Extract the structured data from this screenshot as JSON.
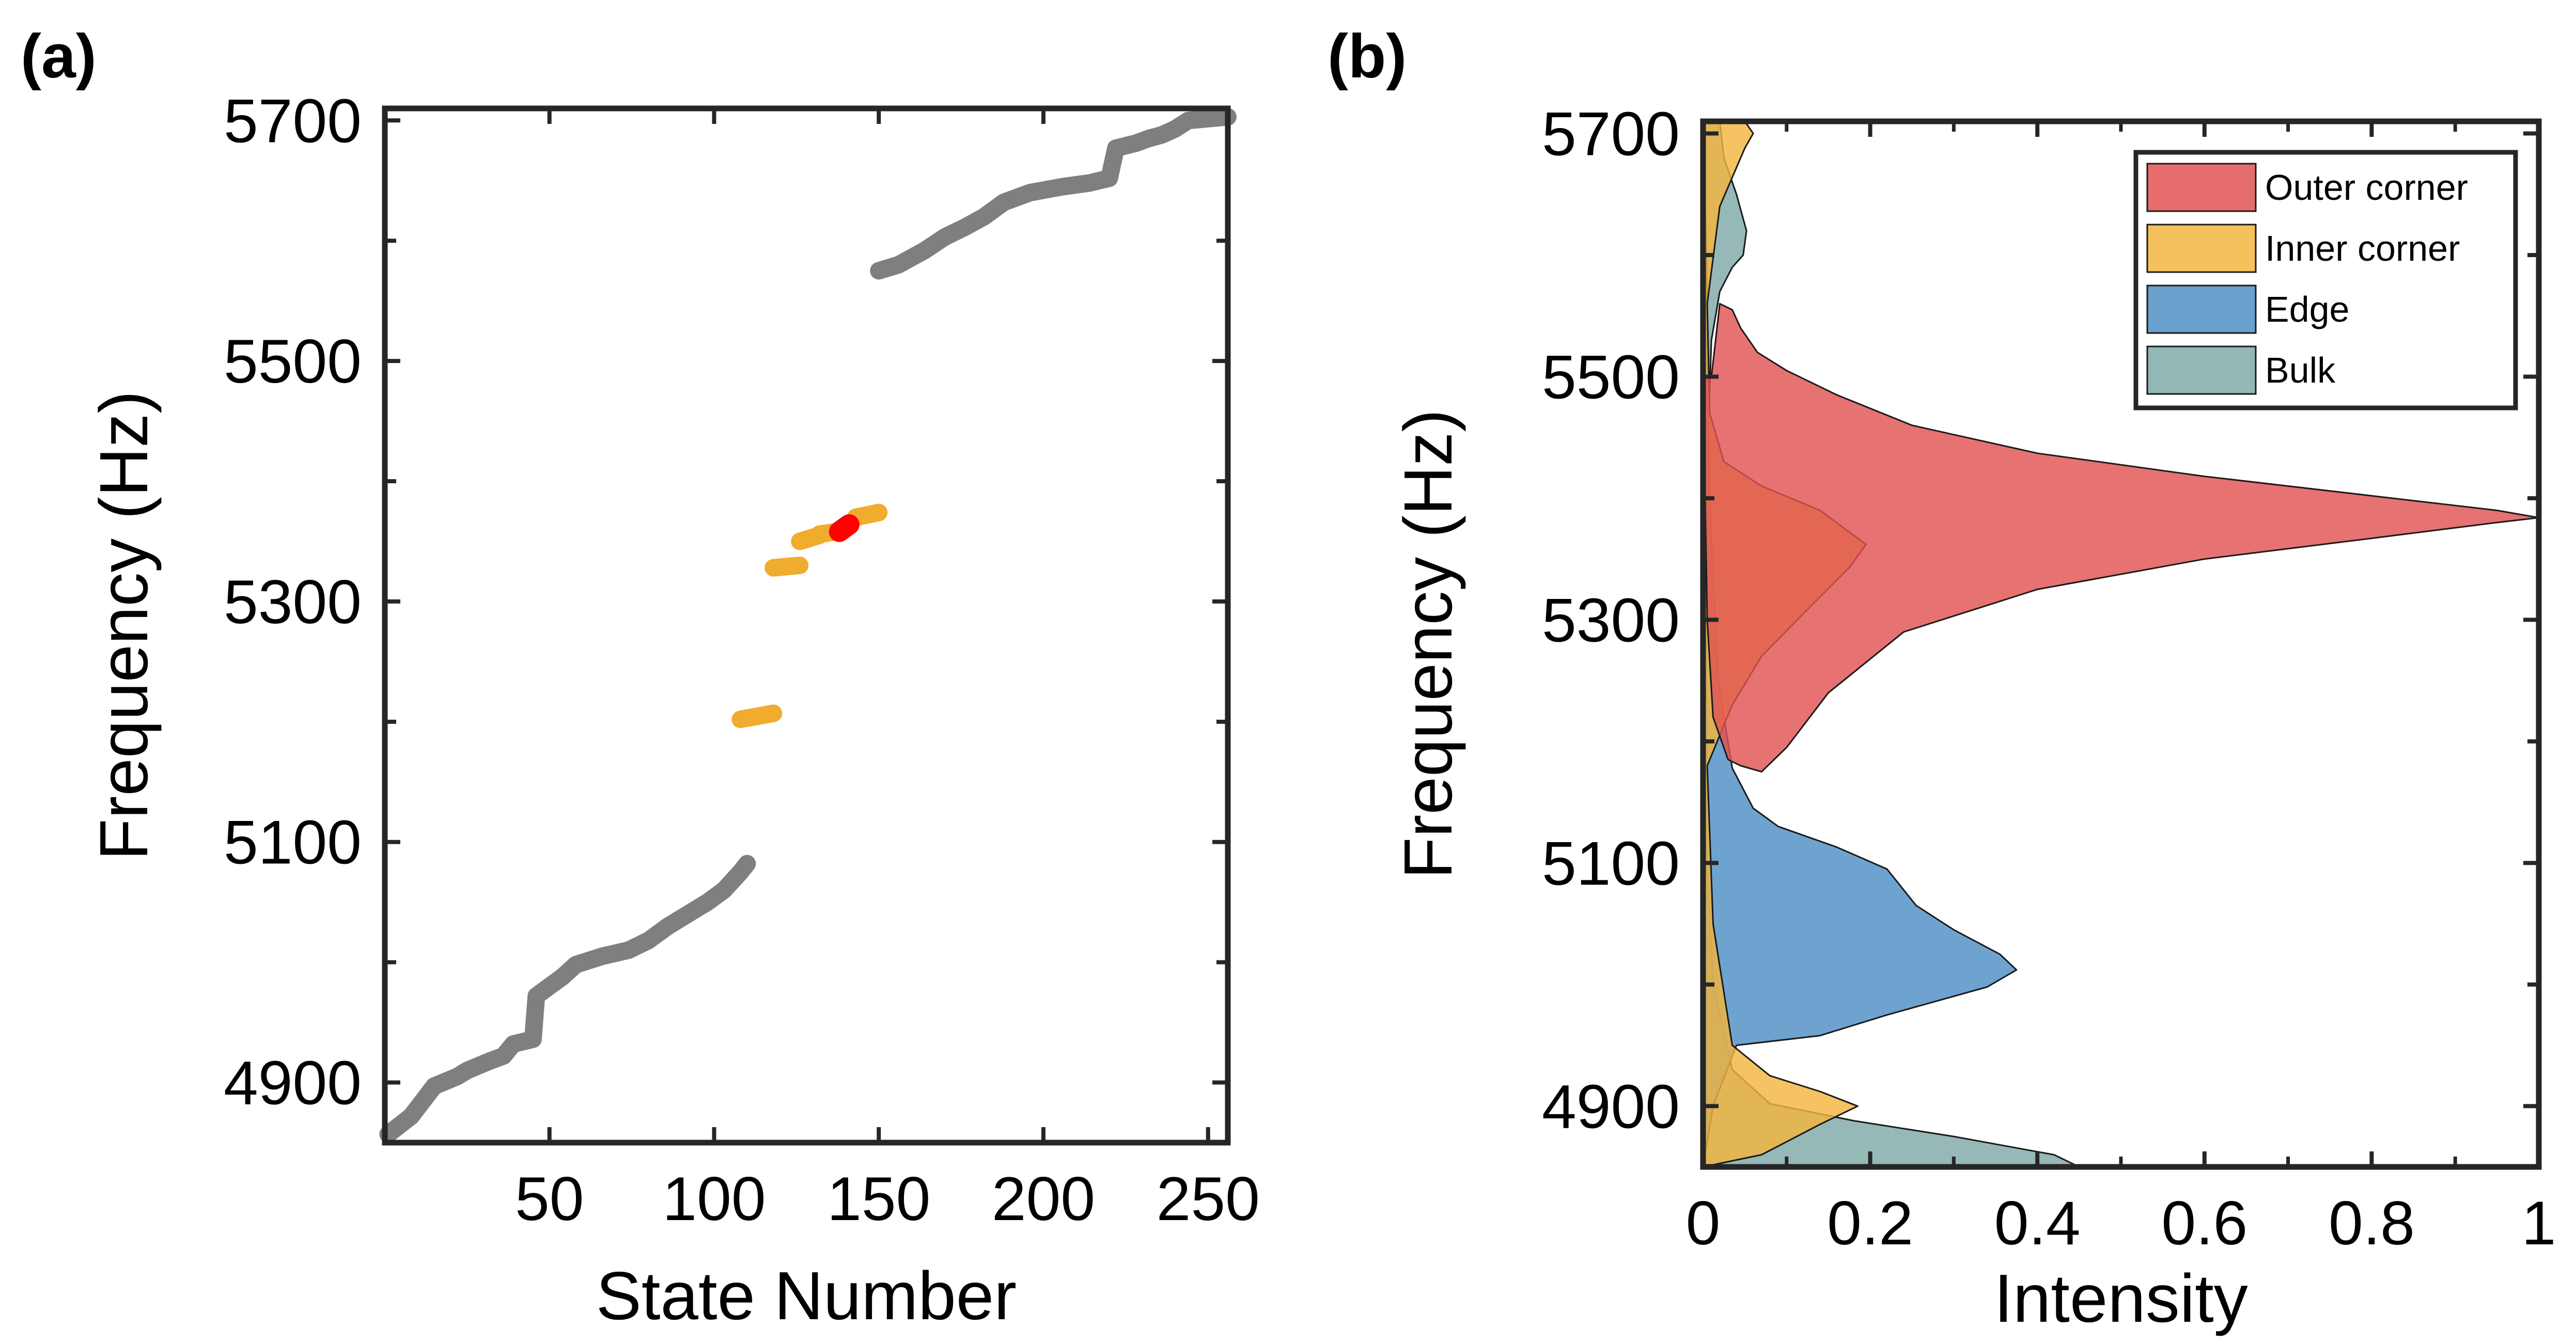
{
  "chart_data": [
    {
      "panel_label": "(a)",
      "type": "scatter",
      "xlabel": "State Number",
      "ylabel": "Frequency (Hz)",
      "xlim": [
        0,
        256
      ],
      "ylim": [
        4850,
        5710
      ],
      "xticks": [
        50,
        100,
        150,
        200,
        250
      ],
      "yticks": [
        4900,
        5100,
        5300,
        5500,
        5700
      ],
      "yminor": [
        5000,
        5200,
        5400,
        5600
      ],
      "colors": {
        "bulk": "#7f7f7f",
        "inner": "#f0ac2c",
        "outer": "#ff0000"
      },
      "gray_segments": [
        [
          1,
          4857
        ],
        [
          8,
          4872
        ],
        [
          15,
          4897
        ],
        [
          22,
          4905
        ],
        [
          25,
          4910
        ],
        [
          32,
          4918
        ],
        [
          36,
          4922
        ],
        [
          39,
          4932
        ],
        [
          45,
          4936
        ],
        [
          46,
          4972
        ],
        [
          50,
          4980
        ],
        [
          54,
          4988
        ],
        [
          58,
          4998
        ],
        [
          66,
          5005
        ],
        [
          74,
          5010
        ],
        [
          80,
          5018
        ],
        [
          86,
          5030
        ],
        [
          92,
          5040
        ],
        [
          98,
          5050
        ],
        [
          103,
          5060
        ],
        [
          108,
          5075
        ],
        [
          110,
          5082
        ],
        [
          150,
          5575
        ],
        [
          156,
          5580
        ],
        [
          164,
          5592
        ],
        [
          170,
          5603
        ],
        [
          176,
          5611
        ],
        [
          182,
          5620
        ],
        [
          188,
          5632
        ],
        [
          196,
          5640
        ],
        [
          206,
          5645
        ],
        [
          214,
          5648
        ],
        [
          220,
          5652
        ],
        [
          222,
          5677
        ],
        [
          228,
          5681
        ],
        [
          232,
          5685
        ],
        [
          236,
          5688
        ],
        [
          240,
          5693
        ],
        [
          244,
          5700
        ],
        [
          256,
          5703
        ]
      ],
      "orange_segments": [
        [
          [
            108,
            5202
          ],
          [
            118,
            5207
          ]
        ],
        [
          [
            118,
            5328
          ],
          [
            126,
            5330
          ]
        ],
        [
          [
            126,
            5350
          ],
          [
            132,
            5355
          ]
        ],
        [
          [
            132,
            5356
          ],
          [
            137,
            5358
          ]
        ],
        [
          [
            143,
            5370
          ],
          [
            150,
            5374
          ]
        ]
      ],
      "red_segment": [
        [
          138,
          5358
        ],
        [
          141,
          5364
        ]
      ]
    },
    {
      "panel_label": "(b)",
      "type": "area",
      "xlabel": "Intensity",
      "ylabel": "Frequency (Hz)",
      "xlim": [
        0,
        1
      ],
      "ylim": [
        4850,
        5710
      ],
      "xticks": [
        0,
        0.2,
        0.4,
        0.6,
        0.8,
        1
      ],
      "xtick_labels": [
        "0",
        "0.2",
        "0.4",
        "0.6",
        "0.8",
        "1"
      ],
      "xminor": [
        0.1,
        0.3,
        0.5,
        0.7,
        0.9
      ],
      "yticks": [
        4900,
        5100,
        5300,
        5500,
        5700
      ],
      "yminor": [
        5000,
        5200,
        5400,
        5600
      ],
      "legend_position": "top-right",
      "series": [
        {
          "name": "Bulk",
          "color": "#7faaa8",
          "points": [
            [
              0,
              4850
            ],
            [
              0.45,
              4850
            ],
            [
              0.42,
              4860
            ],
            [
              0.3,
              4875
            ],
            [
              0.18,
              4888
            ],
            [
              0.08,
              4902
            ],
            [
              0.035,
              4930
            ],
            [
              0.012,
              5000
            ],
            [
              0.005,
              5100
            ],
            [
              0.004,
              5300
            ],
            [
              0.006,
              5450
            ],
            [
              0.01,
              5530
            ],
            [
              0.02,
              5570
            ],
            [
              0.035,
              5590
            ],
            [
              0.048,
              5600
            ],
            [
              0.052,
              5620
            ],
            [
              0.04,
              5650
            ],
            [
              0.025,
              5680
            ],
            [
              0.02,
              5710
            ],
            [
              0,
              5710
            ]
          ]
        },
        {
          "name": "Edge",
          "color": "#4f8fc5",
          "points": [
            [
              0,
              4850
            ],
            [
              0.012,
              4900
            ],
            [
              0.04,
              4950
            ],
            [
              0.14,
              4958
            ],
            [
              0.22,
              4975
            ],
            [
              0.34,
              4998
            ],
            [
              0.375,
              5012
            ],
            [
              0.355,
              5025
            ],
            [
              0.3,
              5045
            ],
            [
              0.255,
              5065
            ],
            [
              0.22,
              5095
            ],
            [
              0.16,
              5113
            ],
            [
              0.09,
              5130
            ],
            [
              0.06,
              5145
            ],
            [
              0.035,
              5178
            ],
            [
              0.018,
              5250
            ],
            [
              0.008,
              5400
            ],
            [
              0.004,
              5600
            ],
            [
              0,
              5710
            ]
          ]
        },
        {
          "name": "Inner corner",
          "color": "#f3b63f",
          "points": [
            [
              0,
              4850
            ],
            [
              0.07,
              4860
            ],
            [
              0.14,
              4885
            ],
            [
              0.185,
              4900
            ],
            [
              0.14,
              4912
            ],
            [
              0.08,
              4925
            ],
            [
              0.035,
              4950
            ],
            [
              0.012,
              5050
            ],
            [
              0.005,
              5180
            ],
            [
              0.035,
              5230
            ],
            [
              0.07,
              5270
            ],
            [
              0.12,
              5305
            ],
            [
              0.175,
              5343
            ],
            [
              0.195,
              5362
            ],
            [
              0.14,
              5390
            ],
            [
              0.07,
              5410
            ],
            [
              0.025,
              5430
            ],
            [
              0.008,
              5470
            ],
            [
              0.005,
              5560
            ],
            [
              0.02,
              5640
            ],
            [
              0.05,
              5688
            ],
            [
              0.06,
              5700
            ],
            [
              0.05,
              5710
            ],
            [
              0,
              5710
            ]
          ]
        },
        {
          "name": "Outer corner",
          "color": "#e05352",
          "points": [
            [
              0,
              5500
            ],
            [
              0.005,
              5300
            ],
            [
              0.012,
              5220
            ],
            [
              0.03,
              5185
            ],
            [
              0.045,
              5180
            ],
            [
              0.07,
              5175
            ],
            [
              0.1,
              5195
            ],
            [
              0.15,
              5240
            ],
            [
              0.24,
              5290
            ],
            [
              0.4,
              5325
            ],
            [
              0.6,
              5350
            ],
            [
              0.8,
              5367
            ],
            [
              0.95,
              5380
            ],
            [
              1.0,
              5384
            ],
            [
              0.95,
              5390
            ],
            [
              0.8,
              5402
            ],
            [
              0.6,
              5418
            ],
            [
              0.4,
              5437
            ],
            [
              0.25,
              5460
            ],
            [
              0.16,
              5485
            ],
            [
              0.1,
              5505
            ],
            [
              0.065,
              5520
            ],
            [
              0.045,
              5540
            ],
            [
              0.035,
              5555
            ],
            [
              0.02,
              5560
            ],
            [
              0.01,
              5500
            ],
            [
              0,
              5500
            ]
          ]
        }
      ],
      "legend_order": [
        "Outer corner",
        "Inner corner",
        "Edge",
        "Bulk"
      ]
    }
  ]
}
